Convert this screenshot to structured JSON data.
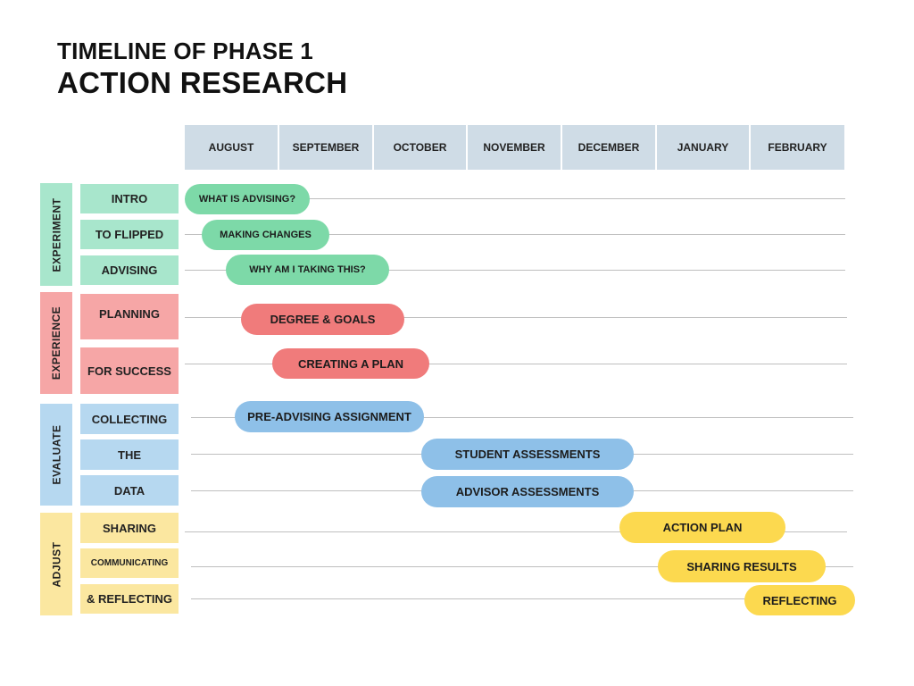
{
  "title": {
    "line1": "TIMELINE OF PHASE 1",
    "line2": "ACTION RESEARCH"
  },
  "months": [
    "AUGUST",
    "SEPTEMBER",
    "OCTOBER",
    "NOVEMBER",
    "DECEMBER",
    "JANUARY",
    "FEBRUARY"
  ],
  "groups": [
    {
      "name": "EXPERIMENT",
      "color": "#a8e6cc"
    },
    {
      "name": "EXPERIENCE",
      "color": "#f6a6a6"
    },
    {
      "name": "EVALUATE",
      "color": "#b6d8f0"
    },
    {
      "name": "ADJUST",
      "color": "#fbe7a0"
    }
  ],
  "rows": [
    {
      "label": "INTRO",
      "task": "WHAT IS ADVISING?"
    },
    {
      "label": "TO FLIPPED",
      "task": "MAKING CHANGES"
    },
    {
      "label": "ADVISING",
      "task": "WHY AM I TAKING THIS?"
    },
    {
      "label": "PLANNING",
      "task": "DEGREE & GOALS"
    },
    {
      "label": "FOR SUCCESS",
      "task": "CREATING A PLAN"
    },
    {
      "label": "COLLECTING",
      "task": "PRE-ADVISING ASSIGNMENT"
    },
    {
      "label": "THE",
      "task": "STUDENT ASSESSMENTS"
    },
    {
      "label": "DATA",
      "task": "ADVISOR ASSESSMENTS"
    },
    {
      "label": "SHARING",
      "task": "ACTION PLAN"
    },
    {
      "label": "COMMUNICATING",
      "task": "SHARING RESULTS"
    },
    {
      "label": "& REFLECTING",
      "task": "REFLECTING"
    }
  ]
}
